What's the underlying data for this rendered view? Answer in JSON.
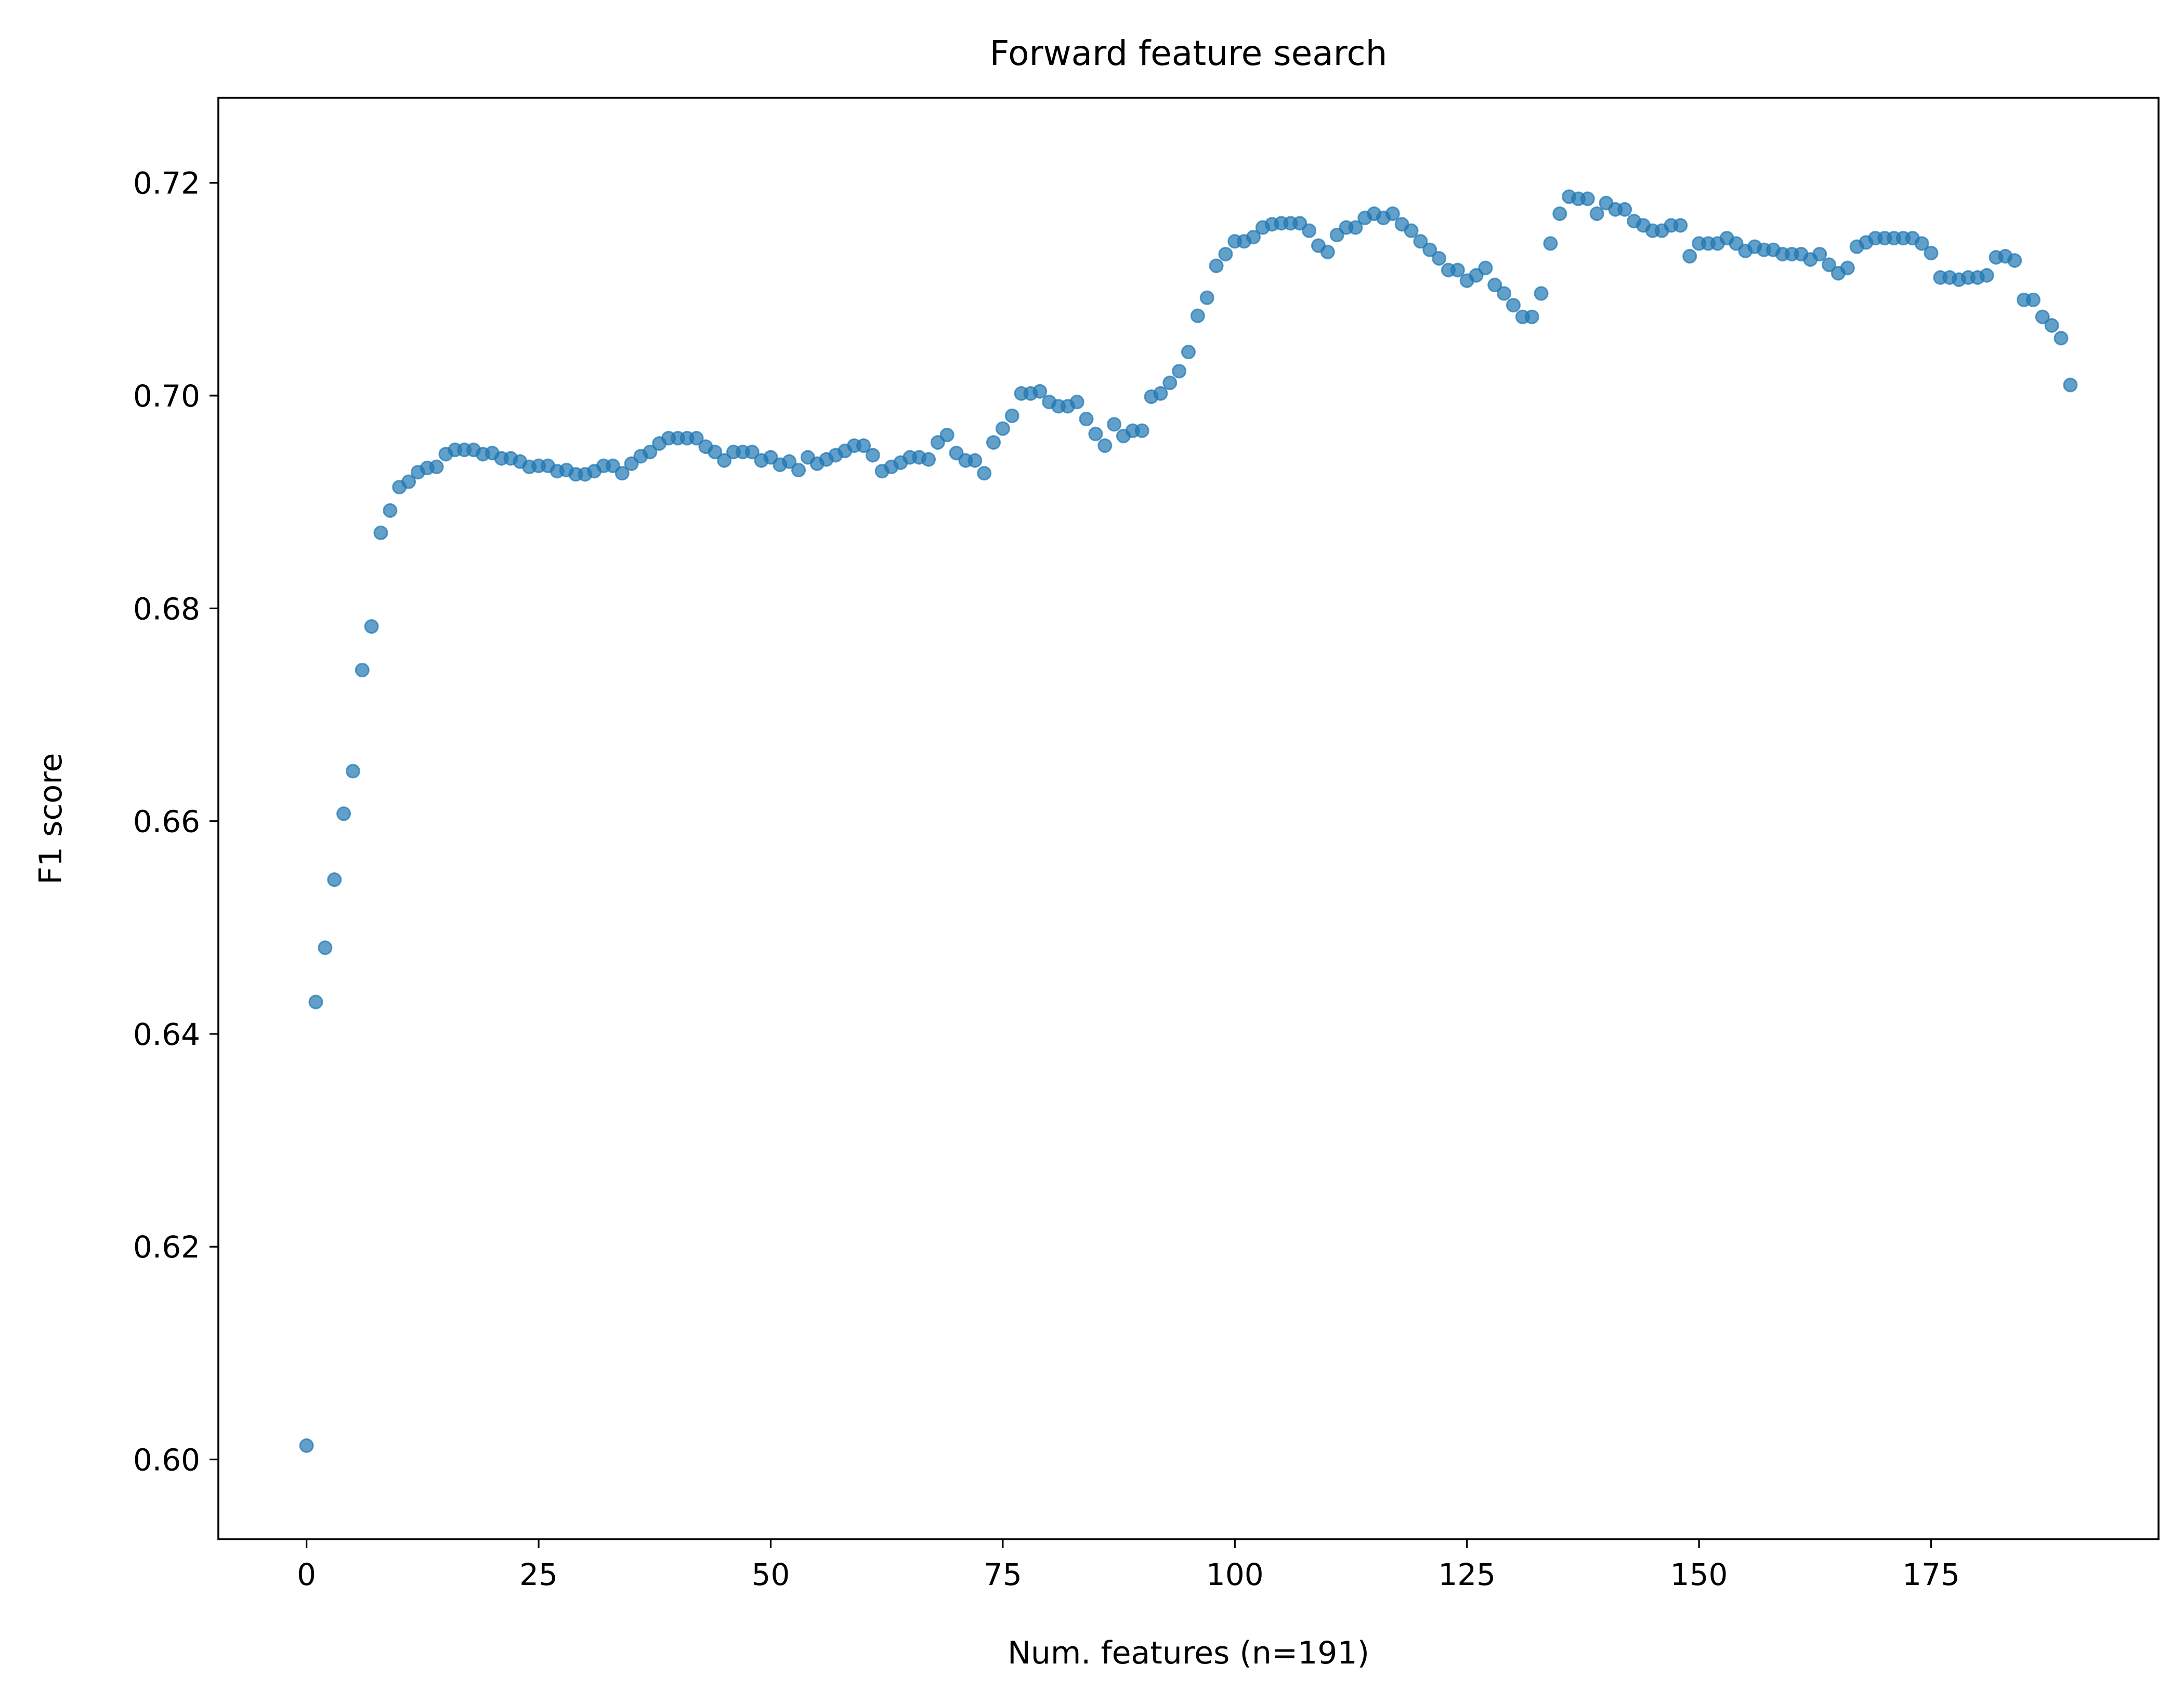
{
  "chart_data": {
    "type": "scatter",
    "title": "Forward feature search",
    "xlabel": "Num. features (n=191)",
    "ylabel": "F1 score",
    "xlim": [
      -9.5,
      199.5
    ],
    "ylim": [
      0.5925,
      0.728
    ],
    "xticks": [
      0,
      25,
      50,
      75,
      100,
      125,
      150,
      175
    ],
    "xtick_labels": [
      "0",
      "25",
      "50",
      "75",
      "100",
      "125",
      "150",
      "175"
    ],
    "yticks": [
      0.6,
      0.62,
      0.64,
      0.66,
      0.68,
      0.7,
      0.72
    ],
    "ytick_labels": [
      "0.60",
      "0.62",
      "0.64",
      "0.66",
      "0.68",
      "0.70",
      "0.72"
    ],
    "grid": false,
    "legend": false,
    "colors": {
      "marker": "#1f77b4",
      "axes": "#000000",
      "background": "#ffffff"
    },
    "marker_opacity": 0.7,
    "series": [
      {
        "x": [
          0,
          1,
          2,
          3,
          4,
          5,
          6,
          7,
          8,
          9,
          10,
          11,
          12,
          13,
          14,
          15,
          16,
          17,
          18,
          19,
          20,
          21,
          22,
          23,
          24,
          25,
          26,
          27,
          28,
          29,
          30,
          31,
          32,
          33,
          34,
          35,
          36,
          37,
          38,
          39,
          40,
          41,
          42,
          43,
          44,
          45,
          46,
          47,
          48,
          49,
          50,
          51,
          52,
          53,
          54,
          55,
          56,
          57,
          58,
          59,
          60,
          61,
          62,
          63,
          64,
          65,
          66,
          67,
          68,
          69,
          70,
          71,
          72,
          73,
          74,
          75,
          76,
          77,
          78,
          79,
          80,
          81,
          82,
          83,
          84,
          85,
          86,
          87,
          88,
          89,
          90,
          91,
          92,
          93,
          94,
          95,
          96,
          97,
          98,
          99,
          100,
          101,
          102,
          103,
          104,
          105,
          106,
          107,
          108,
          109,
          110,
          111,
          112,
          113,
          114,
          115,
          116,
          117,
          118,
          119,
          120,
          121,
          122,
          123,
          124,
          125,
          126,
          127,
          128,
          129,
          130,
          131,
          132,
          133,
          134,
          135,
          136,
          137,
          138,
          139,
          140,
          141,
          142,
          143,
          144,
          145,
          146,
          147,
          148,
          149,
          150,
          151,
          152,
          153,
          154,
          155,
          156,
          157,
          158,
          159,
          160,
          161,
          162,
          163,
          164,
          165,
          166,
          167,
          168,
          169,
          170,
          171,
          172,
          173,
          174,
          175,
          176,
          177,
          178,
          179,
          180,
          181,
          182,
          183,
          184,
          185,
          186,
          187,
          188,
          189,
          190
        ],
        "values": [
          0.6013,
          0.643,
          0.6481,
          0.6545,
          0.6607,
          0.6647,
          0.6742,
          0.6783,
          0.6871,
          0.6892,
          0.6914,
          0.6919,
          0.6928,
          0.6932,
          0.6933,
          0.6945,
          0.6949,
          0.6949,
          0.6949,
          0.6945,
          0.6946,
          0.6941,
          0.6941,
          0.6938,
          0.6933,
          0.6934,
          0.6934,
          0.6929,
          0.693,
          0.6926,
          0.6926,
          0.6929,
          0.6934,
          0.6934,
          0.6927,
          0.6936,
          0.6943,
          0.6947,
          0.6955,
          0.696,
          0.696,
          0.696,
          0.696,
          0.6952,
          0.6947,
          0.6939,
          0.6947,
          0.6947,
          0.6947,
          0.6939,
          0.6942,
          0.6935,
          0.6938,
          0.693,
          0.6942,
          0.6936,
          0.694,
          0.6944,
          0.6948,
          0.6953,
          0.6953,
          0.6944,
          0.6929,
          0.6933,
          0.6937,
          0.6942,
          0.6942,
          0.694,
          0.6956,
          0.6963,
          0.6946,
          0.6939,
          0.6939,
          0.6927,
          0.6956,
          0.6969,
          0.6981,
          0.7002,
          0.7002,
          0.7004,
          0.6994,
          0.699,
          0.699,
          0.6994,
          0.6978,
          0.6964,
          0.6953,
          0.6973,
          0.6962,
          0.6967,
          0.6967,
          0.6999,
          0.7002,
          0.7012,
          0.7023,
          0.7041,
          0.7075,
          0.7092,
          0.7122,
          0.7133,
          0.7145,
          0.7145,
          0.7149,
          0.7158,
          0.7161,
          0.7162,
          0.7162,
          0.7162,
          0.7155,
          0.7141,
          0.7135,
          0.7151,
          0.7158,
          0.7158,
          0.7167,
          0.7171,
          0.7167,
          0.7171,
          0.7161,
          0.7155,
          0.7145,
          0.7137,
          0.7129,
          0.7118,
          0.7118,
          0.7108,
          0.7113,
          0.712,
          0.7104,
          0.7096,
          0.7085,
          0.7074,
          0.7074,
          0.7096,
          0.7143,
          0.7171,
          0.7187,
          0.7185,
          0.7185,
          0.7171,
          0.7181,
          0.7175,
          0.7175,
          0.7164,
          0.716,
          0.7155,
          0.7155,
          0.716,
          0.716,
          0.7131,
          0.7143,
          0.7143,
          0.7143,
          0.7148,
          0.7143,
          0.7136,
          0.714,
          0.7137,
          0.7137,
          0.7133,
          0.7133,
          0.7133,
          0.7128,
          0.7133,
          0.7123,
          0.7115,
          0.712,
          0.714,
          0.7144,
          0.7148,
          0.7148,
          0.7148,
          0.7148,
          0.7148,
          0.7143,
          0.7134,
          0.7111,
          0.7111,
          0.7109,
          0.7111,
          0.7111,
          0.7113,
          0.713,
          0.7131,
          0.7127,
          0.709,
          0.709,
          0.7074,
          0.7066,
          0.7054,
          0.701
        ]
      }
    ]
  }
}
